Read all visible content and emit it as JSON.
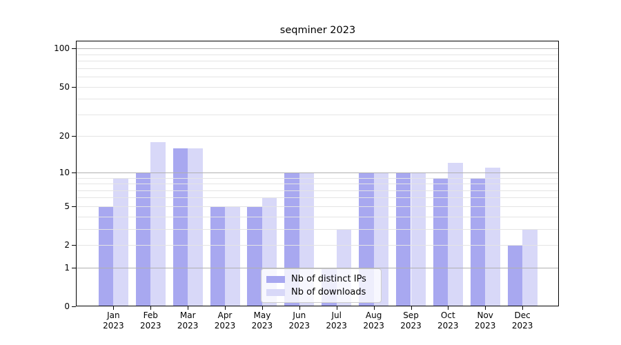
{
  "title": "seqminer 2023",
  "chart_data": {
    "type": "bar",
    "title": "seqminer 2023",
    "categories": [
      "Jan 2023",
      "Feb 2023",
      "Mar 2023",
      "Apr 2023",
      "May 2023",
      "Jun 2023",
      "Jul 2023",
      "Aug 2023",
      "Sep 2023",
      "Oct 2023",
      "Nov 2023",
      "Dec 2023"
    ],
    "series": [
      {
        "name": "Nb of distinct IPs",
        "color": "#a8a8f0",
        "values": [
          5,
          10,
          16,
          5,
          5,
          10,
          1,
          10,
          10,
          9,
          9,
          2
        ]
      },
      {
        "name": "Nb of downloads",
        "color": "#d8d8f8",
        "values": [
          9,
          18,
          16,
          5,
          6,
          10,
          3,
          10,
          10,
          12,
          11,
          3
        ]
      }
    ],
    "xlabel": "",
    "ylabel": "",
    "yscale": "log1p",
    "ylim": [
      0,
      115
    ],
    "yticks": [
      0,
      1,
      2,
      5,
      10,
      20,
      50,
      100
    ],
    "minor_yticks": [
      3,
      4,
      6,
      7,
      8,
      9,
      30,
      40,
      60,
      70,
      80,
      90
    ],
    "decade_ticks": [
      1,
      10,
      100
    ],
    "grid": {
      "major_color": "#b0b0b0",
      "minor_color": "#e4e4e4"
    },
    "legend_position": "lower center",
    "bar_group_width": 0.8
  }
}
